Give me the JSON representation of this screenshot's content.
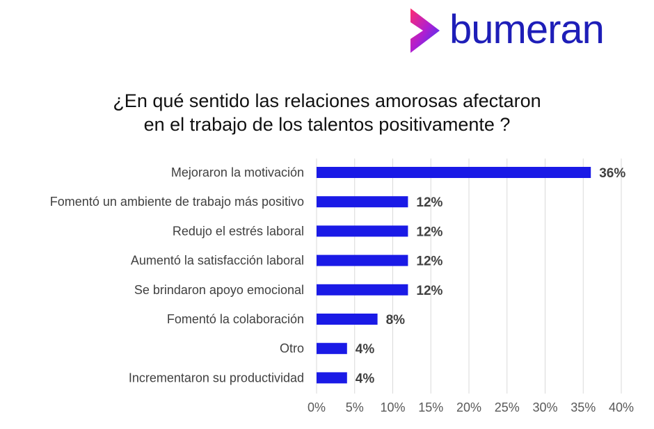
{
  "brand": {
    "name": "bumeran",
    "logo_icon": "chevron-logo-icon",
    "colors": {
      "brand_blue": "#1e1eb8",
      "logo_gradient_start": "#ff2d6f",
      "logo_gradient_end": "#2a3bff"
    }
  },
  "title": {
    "line1": "¿En qué sentido las relaciones amorosas afectaron",
    "line2": "en el trabajo de los talentos positivamente ?"
  },
  "chart_data": {
    "type": "bar",
    "orientation": "horizontal",
    "categories": [
      "Mejoraron la motivación",
      "Fomentó un ambiente de trabajo más positivo",
      "Redujo el estrés laboral",
      "Aumentó la satisfacción laboral",
      "Se brindaron apoyo emocional",
      "Fomentó la colaboración",
      "Otro",
      "Incrementaron su productividad"
    ],
    "values": [
      36,
      12,
      12,
      12,
      12,
      8,
      4,
      4
    ],
    "value_labels": [
      "36%",
      "12%",
      "12%",
      "12%",
      "12%",
      "8%",
      "4%",
      "4%"
    ],
    "xlim": [
      0,
      40
    ],
    "xticks": [
      0,
      5,
      10,
      15,
      20,
      25,
      30,
      35,
      40
    ],
    "xtick_labels": [
      "0%",
      "5%",
      "10%",
      "15%",
      "20%",
      "25%",
      "30%",
      "35%",
      "40%"
    ],
    "grid": "vertical",
    "bar_color": "#1a1ae6",
    "grid_color": "#d9d9d9"
  }
}
